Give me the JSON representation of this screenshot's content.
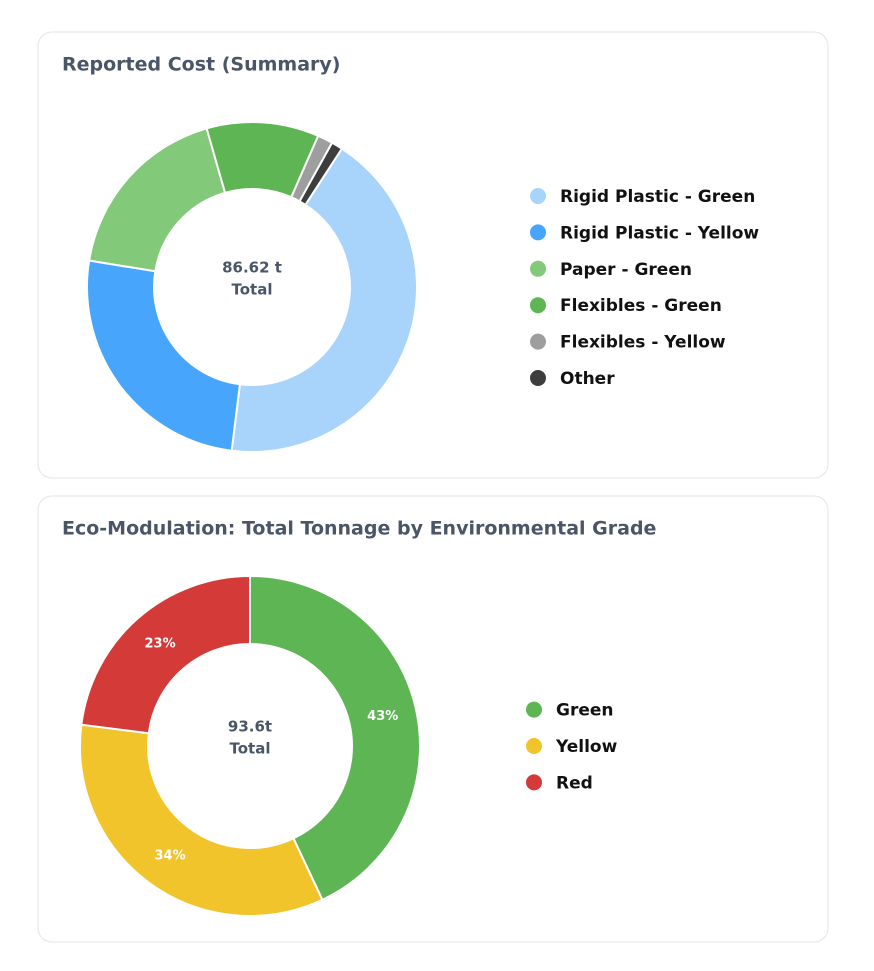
{
  "chart_data": [
    {
      "type": "donut",
      "title": "Reported Cost (Summary)",
      "center_text": [
        "86.62 t",
        "Total"
      ],
      "rotation": 33,
      "categories": [
        "Rigid Plastic - Green",
        "Rigid Plastic - Yellow",
        "Paper - Green",
        "Flexibles - Green",
        "Flexibles - Yellow",
        "Other"
      ],
      "values": [
        42.8,
        25.6,
        18,
        11,
        1.5,
        1.1
      ],
      "colors": [
        "#a8d4fc",
        "#47a5fc",
        "#82c97a",
        "#5db553",
        "#9e9e9e",
        "#3d3d3d"
      ],
      "legend": "right"
    },
    {
      "type": "donut",
      "title": "Eco-Modulation: Total Tonnage by Environmental Grade",
      "center_text": [
        "93.6t",
        "Total"
      ],
      "rotation": 0,
      "categories": [
        "Green",
        "Yellow",
        "Red"
      ],
      "values": [
        43,
        34,
        23
      ],
      "value_labels": [
        "43%",
        "34%",
        "23%"
      ],
      "colors": [
        "#5db553",
        "#f2c42b",
        "#d33a38"
      ],
      "legend": "right"
    }
  ]
}
